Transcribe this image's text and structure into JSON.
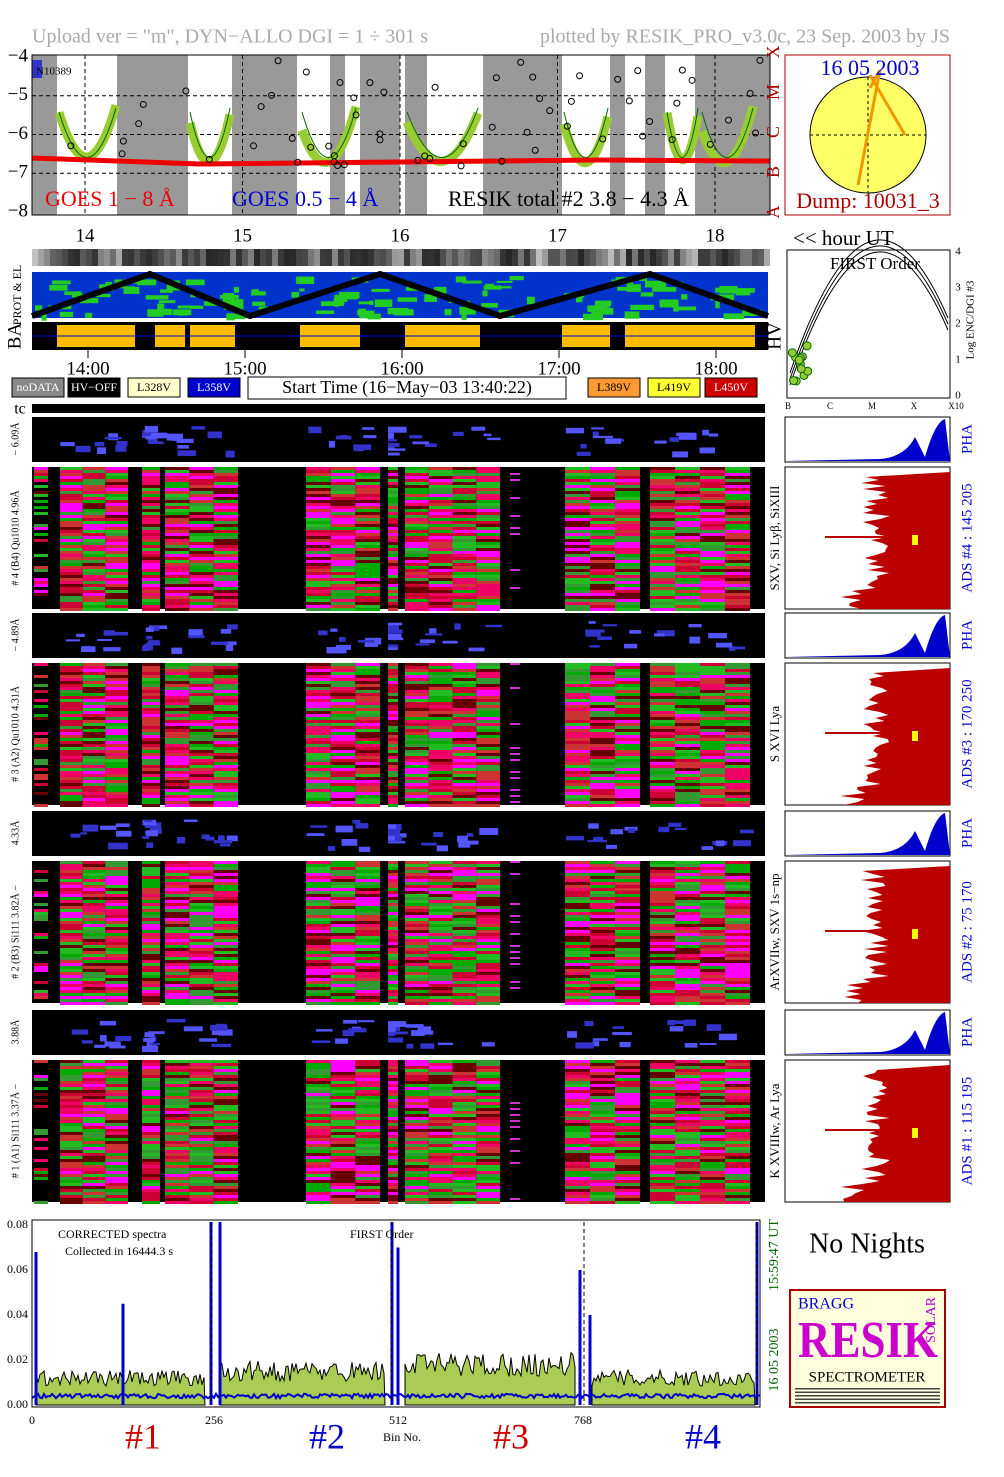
{
  "header": {
    "left": "Upload ver = \"m\", DYN−ALLO DGI =   1 ÷ 301 s",
    "right": "plotted by RESIK_PRO_v3.0c, 23 Sep. 2003 by JS"
  },
  "goes": {
    "yticks": [
      "−4",
      "−5",
      "−6",
      "−7",
      "−8"
    ],
    "noaa": "N10389",
    "legend": [
      "GOES 1 − 8 Å",
      "GOES 0.5 − 4 Å",
      "RESIK total #2  3.8 − 4.3 Å"
    ],
    "classes": [
      "X",
      "M",
      "C",
      "B",
      "A"
    ]
  },
  "sun": {
    "date": "16 05 2003",
    "dump": "Dump: 10031_3"
  },
  "hours": {
    "labels": [
      "14",
      "15",
      "16",
      "17",
      "18"
    ],
    "unit": "<< hour UT"
  },
  "strips": {
    "prot": "PROT & EL",
    "ba": "BA",
    "hv": "HV",
    "times": [
      "14:00",
      "15:00",
      "16:00",
      "17:00",
      "18:00"
    ]
  },
  "order_panel": {
    "title": "FIRST Order",
    "yticks": [
      "0",
      "1",
      "2",
      "3",
      "4"
    ],
    "ylabel": "Log ENC/DGI #3",
    "xticks": [
      "B",
      "C",
      "M",
      "X",
      "X10"
    ]
  },
  "legend": {
    "items": [
      "noDATA",
      "HV−OFF",
      "L328V",
      "L358V",
      "L389V",
      "L419V",
      "L450V"
    ],
    "start": "Start Time (16−May−03 13:40:22)"
  },
  "tc": "tc",
  "channels": [
    {
      "pha_label": "− 6.09Å",
      "main_label": "# 4 (B4) Qu1010 4.96Å",
      "lines": "SXV, Si Lyβ, SiXIII",
      "ads": "ADS #4 :  145 205",
      "pha": "PHA"
    },
    {
      "pha_label": "− 4.89Å",
      "main_label": "# 3 (A2) Qu1010  4.31Å",
      "lines": "S XVI Lya",
      "ads": "ADS #3 :  170 250",
      "pha": "PHA"
    },
    {
      "pha_label": "4.33Å",
      "main_label": "# 2 (B3) Si111  3.82Å −",
      "lines": "ArXVIIw, SXV 1s−np",
      "ads": "ADS #2 :  75 170",
      "pha": "PHA"
    },
    {
      "pha_label": "3.88Å",
      "main_label": "# 1 (A1) Si111  3.37Å −",
      "lines": "K XVIIIw, Ar Lya",
      "ads": "ADS #1 :  115 195",
      "pha": "PHA"
    }
  ],
  "spectrum": {
    "yticks": [
      "0.00",
      "0.02",
      "0.04",
      "0.06",
      "0.08"
    ],
    "xticks": [
      "0",
      "256",
      "512",
      "768"
    ],
    "xlabel": "Bin No.",
    "note1": "CORRECTED spectra",
    "note2": "Collected in 16444.3 s",
    "order": "FIRST Order",
    "sections": [
      "#1",
      "#2",
      "#3",
      "#4"
    ],
    "time": "15:59:47 UT",
    "date": "16 05 2003"
  },
  "night": "No Nights",
  "logo": {
    "bragg": "BRAGG",
    "resik": "RESIK",
    "solar": "SOLAR",
    "spectrometer": "SPECTROMETER"
  }
}
